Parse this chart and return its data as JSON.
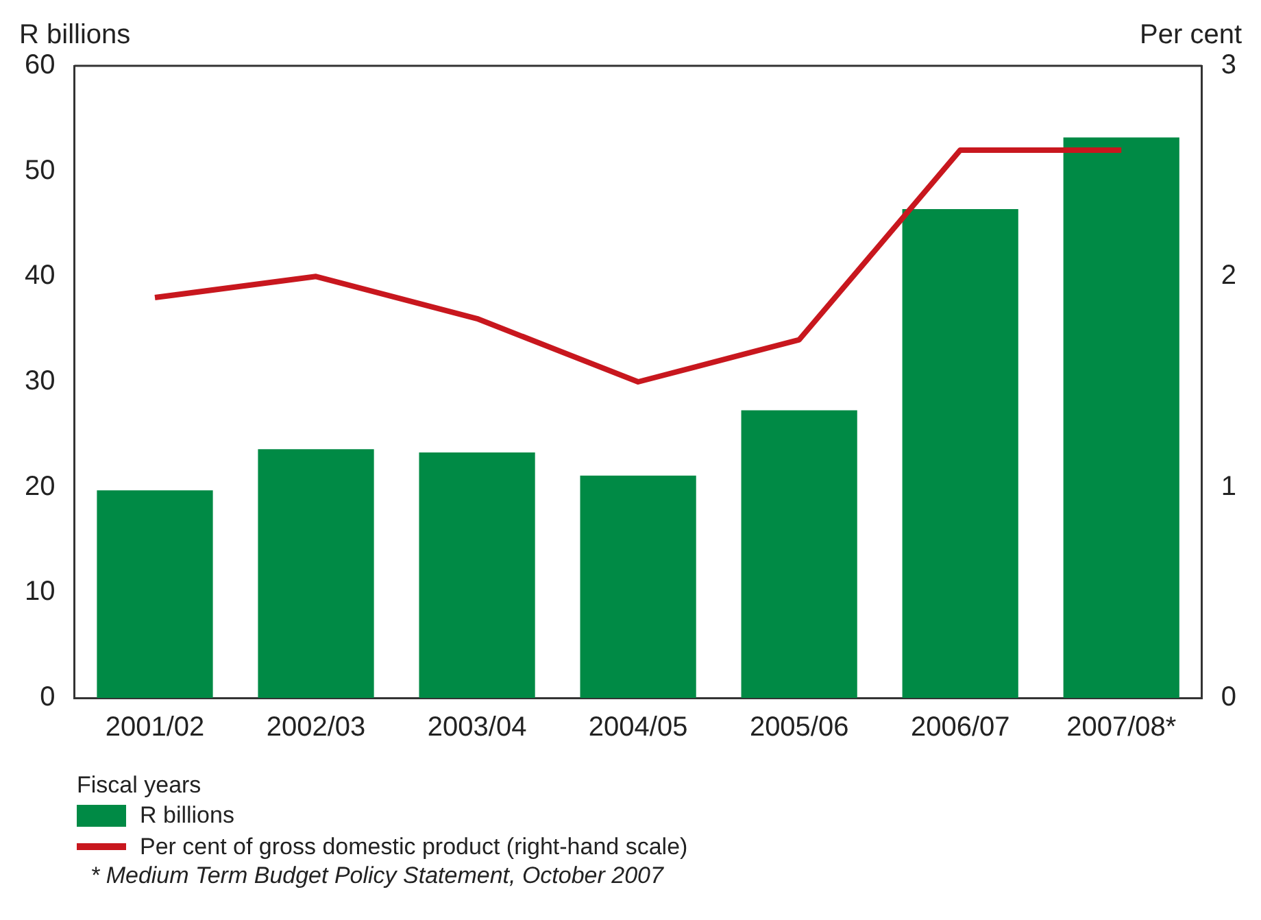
{
  "chart_data": {
    "type": "bar",
    "xlabel": "Fiscal years",
    "ylabel": "R billions",
    "y2label": "Per cent",
    "categories": [
      "2001/02",
      "2002/03",
      "2003/04",
      "2004/05",
      "2005/06",
      "2006/07",
      "2007/08*"
    ],
    "series": [
      {
        "name": "R billions",
        "color": "#008a45",
        "values": [
          19.7,
          23.6,
          23.3,
          21.1,
          27.3,
          46.4,
          53.2
        ]
      },
      {
        "name": "Per cent of gross domestic product (right-hand scale)",
        "type": "line",
        "axis": "y2",
        "color": "#c8171e",
        "values": [
          1.9,
          2.0,
          1.8,
          1.5,
          1.7,
          2.6,
          2.6
        ]
      }
    ],
    "ylim": [
      0,
      60
    ],
    "yticks": [
      0,
      10,
      20,
      30,
      40,
      50,
      60
    ],
    "y2lim": [
      0,
      3
    ],
    "y2ticks": [
      0,
      1,
      2,
      3
    ],
    "grid": false,
    "legend": "bottom",
    "marker": "none",
    "annotations": [
      "* Medium Term Budget Policy Statement, October 2007"
    ]
  }
}
